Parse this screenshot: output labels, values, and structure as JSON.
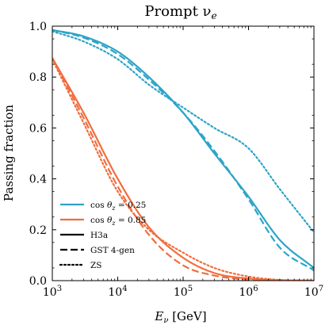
{
  "chart_data": {
    "type": "line",
    "title": "Prompt ν",
    "title_sub": "e",
    "xlabel": "E",
    "xlabel_sub": "ν",
    "xlabel_unit": "[GeV]",
    "ylabel": "Passing fraction",
    "xscale": "log",
    "xlim": [
      1000,
      10000000
    ],
    "ylim": [
      0.0,
      1.0
    ],
    "x_ticks": [
      {
        "value": 1000,
        "base": "10",
        "exp": "3"
      },
      {
        "value": 10000,
        "base": "10",
        "exp": "4"
      },
      {
        "value": 100000,
        "base": "10",
        "exp": "5"
      },
      {
        "value": 1000000,
        "base": "10",
        "exp": "6"
      },
      {
        "value": 10000000,
        "base": "10",
        "exp": "7"
      }
    ],
    "y_ticks": [
      {
        "value": 0.0,
        "label": "0.0"
      },
      {
        "value": 0.2,
        "label": "0.2"
      },
      {
        "value": 0.4,
        "label": "0.4"
      },
      {
        "value": 0.6,
        "label": "0.6"
      },
      {
        "value": 0.8,
        "label": "0.8"
      },
      {
        "value": 1.0,
        "label": "1.0"
      }
    ],
    "grid": false,
    "legend_position": "lower-left",
    "legend": [
      {
        "label_pre": "cos",
        "label_theta": "θ",
        "label_sub": "z",
        "label_post": " = 0.25",
        "color": "#2ea4c8",
        "dash": "solid"
      },
      {
        "label_pre": "cos",
        "label_theta": "θ",
        "label_sub": "z",
        "label_post": " = 0.85",
        "color": "#f26d3d",
        "dash": "solid"
      },
      {
        "label": "H3a",
        "color": "#000000",
        "dash": "solid"
      },
      {
        "label": "GST 4-gen",
        "color": "#000000",
        "dash": "dashed"
      },
      {
        "label": "ZS",
        "color": "#000000",
        "dash": "dotted"
      }
    ],
    "colors": {
      "cos025": "#2ea4c8",
      "cos085": "#f26d3d"
    },
    "series": [
      {
        "group": "cos025",
        "model": "H3a",
        "color": "#2ea4c8",
        "dash": "solid",
        "x": [
          1000,
          3000,
          10000,
          30000,
          100000,
          300000,
          1000000,
          3000000,
          10000000
        ],
        "y": [
          0.985,
          0.96,
          0.9,
          0.8,
          0.66,
          0.5,
          0.33,
          0.16,
          0.05
        ]
      },
      {
        "group": "cos025",
        "model": "GST 4-gen",
        "color": "#2ea4c8",
        "dash": "dashed",
        "x": [
          1000,
          3000,
          10000,
          30000,
          100000,
          300000,
          1000000,
          3000000,
          10000000
        ],
        "y": [
          0.985,
          0.955,
          0.89,
          0.79,
          0.66,
          0.51,
          0.32,
          0.13,
          0.04
        ]
      },
      {
        "group": "cos025",
        "model": "ZS",
        "color": "#2ea4c8",
        "dash": "dotted",
        "x": [
          1000,
          3000,
          10000,
          30000,
          100000,
          300000,
          1000000,
          3000000,
          10000000
        ],
        "y": [
          0.98,
          0.94,
          0.87,
          0.77,
          0.68,
          0.6,
          0.52,
          0.36,
          0.19
        ]
      },
      {
        "group": "cos085",
        "model": "H3a",
        "color": "#f26d3d",
        "dash": "solid",
        "x": [
          1000,
          3000,
          10000,
          30000,
          100000,
          300000,
          1000000,
          3000000,
          10000000
        ],
        "y": [
          0.875,
          0.66,
          0.4,
          0.21,
          0.09,
          0.03,
          0.008,
          0.002,
          0.0
        ]
      },
      {
        "group": "cos085",
        "model": "GST 4-gen",
        "color": "#f26d3d",
        "dash": "dashed",
        "x": [
          1000,
          3000,
          10000,
          30000,
          100000,
          300000,
          1000000,
          3000000,
          10000000
        ],
        "y": [
          0.875,
          0.64,
          0.37,
          0.18,
          0.06,
          0.02,
          0.004,
          0.001,
          0.0
        ]
      },
      {
        "group": "cos085",
        "model": "ZS",
        "color": "#f26d3d",
        "dash": "dotted",
        "x": [
          1000,
          3000,
          10000,
          30000,
          100000,
          300000,
          1000000,
          3000000,
          10000000
        ],
        "y": [
          0.87,
          0.62,
          0.35,
          0.2,
          0.11,
          0.05,
          0.016,
          0.003,
          0.0
        ]
      }
    ]
  }
}
